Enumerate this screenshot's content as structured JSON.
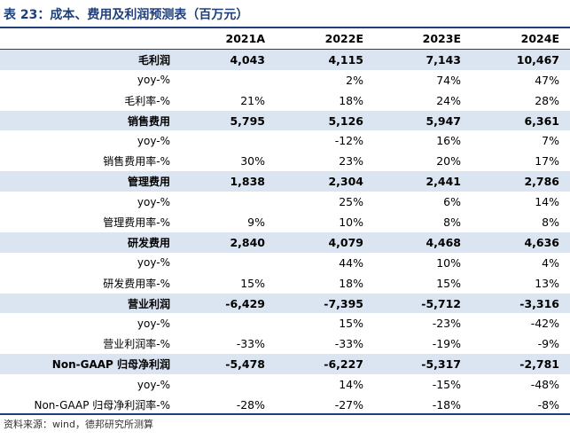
{
  "title": "表 23：成本、费用及利润预测表（百万元）",
  "footer": "资料来源：wind，德邦研究所测算",
  "columns": [
    "2021A",
    "2022E",
    "2023E",
    "2024E"
  ],
  "rows": [
    {
      "label": "毛利润",
      "type": "main",
      "values": [
        "4,043",
        "4,115",
        "7,143",
        "10,467"
      ]
    },
    {
      "label": "yoy-%",
      "type": "sub",
      "values": [
        "",
        "2%",
        "74%",
        "47%"
      ]
    },
    {
      "label": "毛利率-%",
      "type": "sub",
      "values": [
        "21%",
        "18%",
        "24%",
        "28%"
      ]
    },
    {
      "label": "销售费用",
      "type": "main",
      "values": [
        "5,795",
        "5,126",
        "5,947",
        "6,361"
      ]
    },
    {
      "label": "yoy-%",
      "type": "sub",
      "values": [
        "",
        "-12%",
        "16%",
        "7%"
      ]
    },
    {
      "label": "销售费用率-%",
      "type": "sub",
      "values": [
        "30%",
        "23%",
        "20%",
        "17%"
      ]
    },
    {
      "label": "管理费用",
      "type": "main",
      "values": [
        "1,838",
        "2,304",
        "2,441",
        "2,786"
      ]
    },
    {
      "label": "yoy-%",
      "type": "sub",
      "values": [
        "",
        "25%",
        "6%",
        "14%"
      ]
    },
    {
      "label": "管理费用率-%",
      "type": "sub",
      "values": [
        "9%",
        "10%",
        "8%",
        "8%"
      ]
    },
    {
      "label": "研发费用",
      "type": "main",
      "values": [
        "2,840",
        "4,079",
        "4,468",
        "4,636"
      ]
    },
    {
      "label": "yoy-%",
      "type": "sub",
      "values": [
        "",
        "44%",
        "10%",
        "4%"
      ]
    },
    {
      "label": "研发费用率-%",
      "type": "sub",
      "values": [
        "15%",
        "18%",
        "15%",
        "13%"
      ]
    },
    {
      "label": "营业利润",
      "type": "main",
      "values": [
        "-6,429",
        "-7,395",
        "-5,712",
        "-3,316"
      ]
    },
    {
      "label": "yoy-%",
      "type": "sub",
      "values": [
        "",
        "15%",
        "-23%",
        "-42%"
      ]
    },
    {
      "label": "营业利润率-%",
      "type": "sub",
      "values": [
        "-33%",
        "-33%",
        "-19%",
        "-9%"
      ]
    },
    {
      "label": "Non-GAAP 归母净利润",
      "type": "main",
      "values": [
        "-5,478",
        "-6,227",
        "-5,317",
        "-2,781"
      ]
    },
    {
      "label": "yoy-%",
      "type": "sub",
      "values": [
        "",
        "14%",
        "-15%",
        "-48%"
      ]
    },
    {
      "label": "Non-GAAP 归母净利润率-%",
      "type": "sub",
      "values": [
        "-28%",
        "-27%",
        "-18%",
        "-8%"
      ]
    }
  ],
  "colors": {
    "accent": "#1f3f7a",
    "main_row_fill": "#dbe4f1"
  }
}
